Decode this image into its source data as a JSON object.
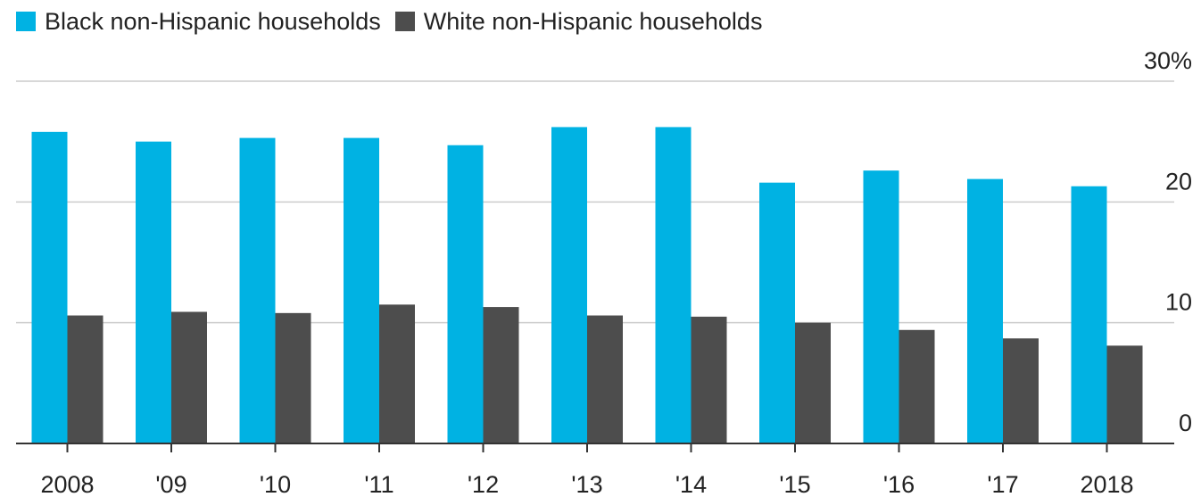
{
  "chart_data": {
    "type": "bar",
    "categories": [
      "2008",
      "'09",
      "'10",
      "'11",
      "'12",
      "'13",
      "'14",
      "'15",
      "'16",
      "'17",
      "2018"
    ],
    "series": [
      {
        "name": "Black non-Hispanic households",
        "color": "#00b2e3",
        "values": [
          25.8,
          25.0,
          25.3,
          25.3,
          24.7,
          26.2,
          26.2,
          21.6,
          22.6,
          21.9,
          21.3
        ]
      },
      {
        "name": "White non-Hispanic households",
        "color": "#4d4d4d",
        "values": [
          10.6,
          10.9,
          10.8,
          11.5,
          11.3,
          10.6,
          10.5,
          10.0,
          9.4,
          8.7,
          8.1
        ]
      }
    ],
    "yticks": [
      "30%",
      "20",
      "10",
      "0"
    ],
    "ylim": [
      0,
      30
    ],
    "grid": true,
    "legend_position": "top-left"
  }
}
